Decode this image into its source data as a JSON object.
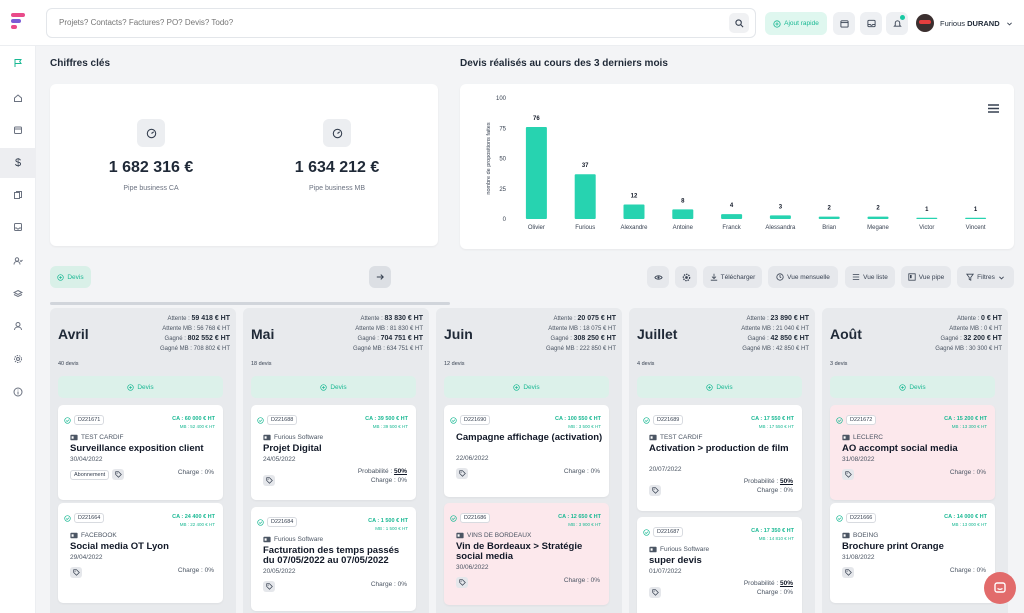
{
  "search": {
    "placeholder": "Projets? Contacts? Factures? PO? Devis? Todo?"
  },
  "header": {
    "quick_add": "Ajout rapide",
    "user_first": "Furious",
    "user_last": "DURAND"
  },
  "kpi_section": {
    "title": "Chiffres clés",
    "items": [
      {
        "value": "1 682 316 €",
        "label": "Pipe business CA"
      },
      {
        "value": "1 634 212 €",
        "label": "Pipe business MB"
      }
    ]
  },
  "chart_section": {
    "title": "Devis réalisés au cours des 3 derniers mois"
  },
  "chart_data": {
    "type": "bar",
    "categories": [
      "Olivier",
      "Furious",
      "Alexandre",
      "Antoine",
      "Franck",
      "Alessandra",
      "Brian",
      "Megane",
      "Victor",
      "Vincent"
    ],
    "values": [
      76,
      37,
      12,
      8,
      4,
      3,
      2,
      2,
      1,
      1
    ],
    "ylabel": "nombre de propositions faites",
    "ylim": [
      0,
      100
    ],
    "yticks": [
      "0",
      "25",
      "50",
      "75",
      "100"
    ],
    "color": "#27d3b0"
  },
  "toolbar": {
    "devis": "Devis",
    "download": "Télécharger",
    "monthly": "Vue mensuelle",
    "list": "Vue liste",
    "pipe": "Vue pipe",
    "filters": "Filtres"
  },
  "columns": [
    {
      "month": "Avril",
      "attente": "59 418 € HT",
      "attente_mb": "56 768 € HT",
      "gagne": "802 552 € HT",
      "gagne_mb": "708 802 € HT",
      "count": "40 devis",
      "add": "Devis",
      "cards": [
        {
          "code": "D221671",
          "ca": "CA : 60 000 € HT",
          "mb": "MB : 52 400 € HT",
          "client": "TEST CARDIF",
          "title": "Surveillance exposition client",
          "date": "30/04/2022",
          "chip": "Abonnement",
          "charge": "Charge : 0%",
          "prob": ""
        },
        {
          "code": "D221664",
          "ca": "CA : 24 400 € HT",
          "mb": "MB : 22 400 € HT",
          "client": "FACEBOOK",
          "title": "Social media OT Lyon",
          "date": "29/04/2022",
          "chip": "",
          "charge": "Charge : 0%",
          "prob": ""
        }
      ]
    },
    {
      "month": "Mai",
      "attente": "83 830 € HT",
      "attente_mb": "81 830 € HT",
      "gagne": "704 751 € HT",
      "gagne_mb": "634 751 € HT",
      "count": "18 devis",
      "add": "Devis",
      "cards": [
        {
          "code": "D221688",
          "ca": "CA : 39 500 € HT",
          "mb": "MB : 39 500 € HT",
          "client": "Furious Software",
          "title": "Projet Digital",
          "date": "24/05/2022",
          "chip": "",
          "charge": "Charge : 0%",
          "prob": "50%"
        },
        {
          "code": "D221684",
          "ca": "CA : 1 500 € HT",
          "mb": "MB : 1 500 € HT",
          "client": "Furious Software",
          "title": "Facturation des temps passés du 07/05/2022 au 07/05/2022",
          "date": "20/05/2022",
          "chip": "",
          "charge": "Charge : 0%",
          "prob": ""
        }
      ]
    },
    {
      "month": "Juin",
      "attente": "20 075 € HT",
      "attente_mb": "18 075 € HT",
      "gagne": "308 250 € HT",
      "gagne_mb": "222 850 € HT",
      "count": "12 devis",
      "add": "Devis",
      "cards": [
        {
          "code": "D221690",
          "ca": "CA : 100 550 € HT",
          "mb": "MB : 3 500 € HT",
          "client": "",
          "title": "Campagne affichage (activation)",
          "date": "22/06/2022",
          "chip": "",
          "charge": "Charge : 0%",
          "prob": ""
        },
        {
          "code": "D221686",
          "ca": "CA : 12 650 € HT",
          "mb": "MB : 3 900 € HT",
          "client": "VINS DE BORDEAUX",
          "title": "Vin de Bordeaux > Stratégie social media",
          "date": "30/06/2022",
          "chip": "",
          "charge": "Charge : 0%",
          "prob": ""
        }
      ]
    },
    {
      "month": "Juillet",
      "attente": "23 890 € HT",
      "attente_mb": "21 040 € HT",
      "gagne": "42 850 € HT",
      "gagne_mb": "42 850 € HT",
      "count": "4 devis",
      "add": "Devis",
      "cards": [
        {
          "code": "D221689",
          "ca": "CA : 17 550 € HT",
          "mb": "MB : 17 550 € HT",
          "client": "TEST CARDIF",
          "title": "Activation > production de film",
          "date": "20/07/2022",
          "chip": "",
          "charge": "Charge : 0%",
          "prob": "50%"
        },
        {
          "code": "D221687",
          "ca": "CA : 17 350 € HT",
          "mb": "MB : 14 810 € HT",
          "client": "Furious Software",
          "title": "super devis",
          "date": "01/07/2022",
          "chip": "",
          "charge": "Charge : 0%",
          "prob": "50%"
        }
      ]
    },
    {
      "month": "Août",
      "attente": "0 € HT",
      "attente_mb": "0 € HT",
      "gagne": "32 200 € HT",
      "gagne_mb": "30 300 € HT",
      "count": "3 devis",
      "add": "Devis",
      "cards": [
        {
          "code": "D221672",
          "ca": "CA : 15 200 € HT",
          "mb": "MB : 13 300 € HT",
          "client": "LECLERC",
          "title": "AO accompt social media",
          "date": "31/08/2022",
          "chip": "",
          "charge": "Charge : 0%",
          "prob": ""
        },
        {
          "code": "D221666",
          "ca": "CA : 14 000 € HT",
          "mb": "MB : 13 000 € HT",
          "client": "BOEING",
          "title": "Brochure print Orange",
          "date": "31/08/2022",
          "chip": "",
          "charge": "Charge : 0%",
          "prob": ""
        }
      ]
    }
  ],
  "labels": {
    "attente": "Attente :",
    "attente_mb": "Attente MB :",
    "gagne": "Gagné :",
    "gagne_mb": "Gagné MB :",
    "probabilite": "Probabilité :"
  }
}
